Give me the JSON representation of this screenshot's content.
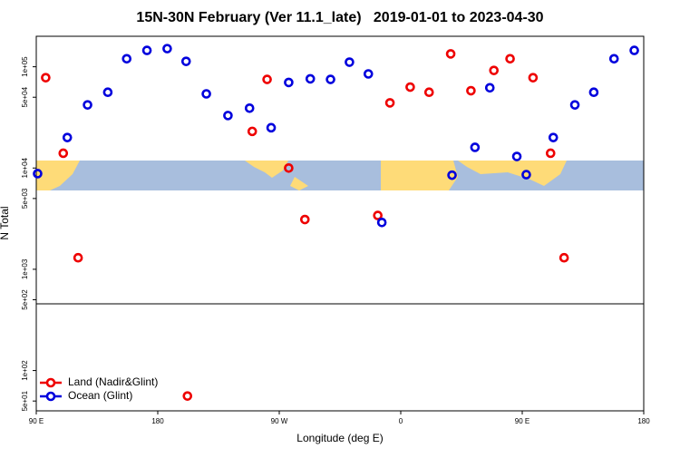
{
  "chart_data": {
    "type": "scatter",
    "title": "15N-30N February (Ver 11.1_late)   2019-01-01 to 2023-04-30",
    "x_label": "Longitude (deg E)",
    "y_label": "N Total",
    "yscale": "log",
    "legend": "bottom-left",
    "xlim": [
      90,
      540
    ],
    "ylim": [
      40,
      200000
    ],
    "xticks": [
      {
        "value": 90,
        "label": "90 E"
      },
      180,
      {
        "value": 270,
        "label": "90 W"
      },
      {
        "value": 360,
        "label": "0"
      },
      {
        "value": 450,
        "label": "90 E"
      },
      {
        "value": 540,
        "label": "180"
      }
    ],
    "yticks": [
      {
        "value": 50,
        "label": "5e+01"
      },
      {
        "value": 100,
        "label": "1e+02"
      },
      {
        "value": 500,
        "label": "5e+02"
      },
      {
        "value": 1000,
        "label": "1e+03"
      },
      {
        "value": 5000,
        "label": "5e+03"
      },
      {
        "value": 10000,
        "label": "1e+04"
      },
      {
        "value": 50000,
        "label": "5e+04"
      },
      {
        "value": 100000,
        "label": "1e+05"
      }
    ],
    "series": [
      {
        "name": "Land (Nadir&Glint)",
        "color": "#ee0000",
        "x": [
          97,
          110,
          121,
          250,
          261,
          277,
          289,
          343,
          352,
          367,
          381,
          397,
          412,
          429,
          441,
          458,
          471,
          481,
          202
        ],
        "values": [
          78000,
          14000,
          1300,
          23000,
          75000,
          10000,
          3100,
          3400,
          44000,
          63000,
          56000,
          134000,
          58000,
          92000,
          120000,
          78000,
          14000,
          1300,
          56
        ]
      },
      {
        "name": "Ocean (Glint)",
        "color": "#0000dd",
        "x": [
          91,
          113,
          128,
          143,
          157,
          172,
          187,
          201,
          216,
          232,
          248,
          264,
          277,
          293,
          308,
          322,
          336,
          346,
          398,
          415,
          426,
          446,
          453,
          473,
          489,
          503,
          518,
          533
        ],
        "values": [
          8800,
          20000,
          42000,
          56000,
          120000,
          145000,
          151000,
          113000,
          54000,
          33000,
          39000,
          25000,
          70000,
          76000,
          75000,
          111000,
          85000,
          2900,
          8500,
          16000,
          62000,
          13000,
          8600,
          20000,
          42000,
          56000,
          120000,
          145000
        ]
      }
    ]
  }
}
